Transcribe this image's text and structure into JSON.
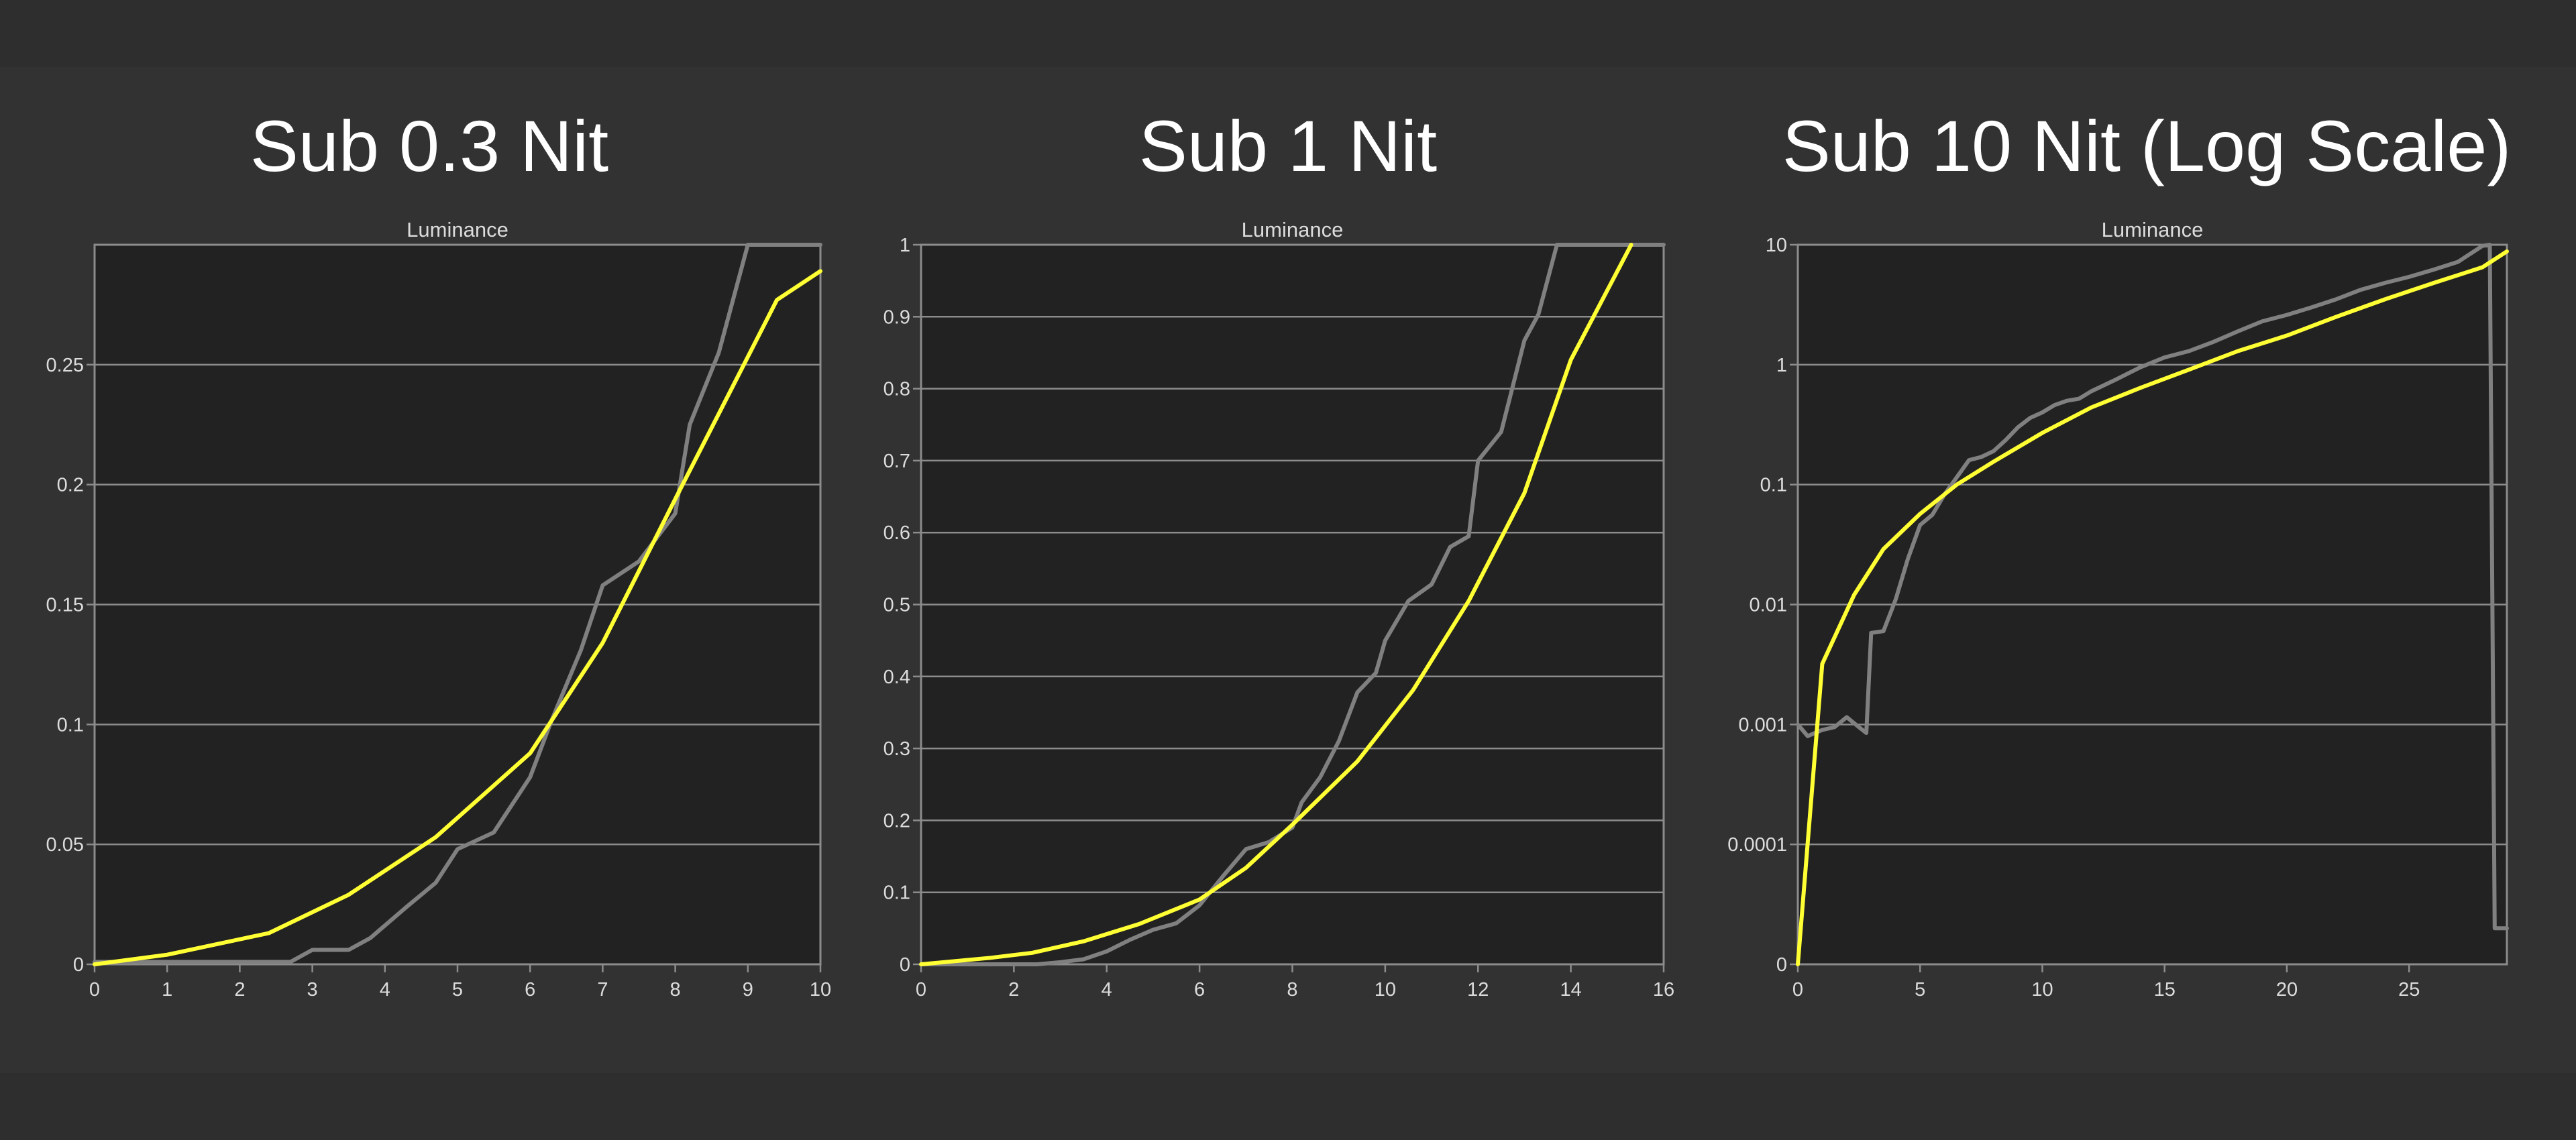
{
  "colors": {
    "background": "#323232",
    "plot_background": "#222222",
    "grid": "#8c8c8c",
    "text": "#dcdcdc",
    "series_reference": "#ffff33",
    "series_measured": "#808080"
  },
  "chart_data": [
    {
      "type": "line",
      "title": "Sub 0.3 Nit",
      "axis_title": "Luminance",
      "xlim": [
        0,
        10
      ],
      "ylim": [
        0,
        0.3
      ],
      "x_ticks": [
        "0",
        "1",
        "2",
        "3",
        "4",
        "5",
        "6",
        "7",
        "8",
        "9",
        "10"
      ],
      "y_ticks": [
        "0",
        "0.05",
        "0.1",
        "0.15",
        "0.2",
        "0.25"
      ],
      "grid": true,
      "series": [
        {
          "color": "#ffff33",
          "x": [
            0,
            1,
            2.4,
            3.5,
            4.7,
            6,
            7,
            8,
            9.4,
            10
          ],
          "y": [
            0,
            0.004,
            0.013,
            0.029,
            0.053,
            0.088,
            0.134,
            0.194,
            0.277,
            0.289
          ]
        },
        {
          "color": "#808080",
          "x": [
            0,
            2.7,
            3,
            3.5,
            3.8,
            4.3,
            4.7,
            5,
            5.5,
            6,
            6.3,
            6.7,
            7,
            7.5,
            8,
            8.2,
            8.6,
            9,
            10
          ],
          "y": [
            0.001,
            0.001,
            0.006,
            0.006,
            0.011,
            0.024,
            0.034,
            0.048,
            0.055,
            0.078,
            0.102,
            0.131,
            0.158,
            0.168,
            0.188,
            0.225,
            0.255,
            0.3,
            0.3
          ]
        }
      ]
    },
    {
      "type": "line",
      "title": "Sub 1 Nit",
      "axis_title": "Luminance",
      "xlim": [
        0,
        16
      ],
      "ylim": [
        0,
        1
      ],
      "x_ticks": [
        "0",
        "2",
        "4",
        "6",
        "8",
        "10",
        "12",
        "14",
        "16"
      ],
      "y_ticks": [
        "0",
        "0.1",
        "0.2",
        "0.3",
        "0.4",
        "0.5",
        "0.6",
        "0.7",
        "0.8",
        "0.9",
        "1"
      ],
      "grid": true,
      "series": [
        {
          "color": "#ffff33",
          "x": [
            0,
            1.5,
            2.4,
            3.5,
            4.7,
            6,
            7,
            8,
            9.4,
            10.6,
            11.8,
            13,
            14,
            15.3
          ],
          "y": [
            0,
            0.009,
            0.016,
            0.032,
            0.056,
            0.09,
            0.134,
            0.194,
            0.282,
            0.381,
            0.505,
            0.655,
            0.84,
            1.0
          ]
        },
        {
          "color": "#808080",
          "x": [
            0,
            2.5,
            3,
            3.5,
            4,
            4.5,
            5,
            5.5,
            6,
            6.5,
            7,
            7.5,
            8,
            8.2,
            8.6,
            9,
            9.4,
            9.8,
            10,
            10.5,
            11,
            11.4,
            11.8,
            12,
            12.5,
            13,
            13.3,
            13.7,
            16
          ],
          "y": [
            0,
            0,
            0.003,
            0.007,
            0.018,
            0.034,
            0.048,
            0.057,
            0.082,
            0.122,
            0.16,
            0.17,
            0.19,
            0.225,
            0.26,
            0.31,
            0.378,
            0.405,
            0.45,
            0.505,
            0.528,
            0.58,
            0.595,
            0.7,
            0.74,
            0.867,
            0.903,
            1.0,
            1.0
          ]
        }
      ]
    },
    {
      "type": "line",
      "title": "Sub 10 Nit (Log Scale)",
      "axis_title": "Luminance",
      "scale": "log",
      "xlim": [
        0,
        29
      ],
      "ylim": [
        0,
        10
      ],
      "x_ticks": [
        "0",
        "5",
        "10",
        "15",
        "20",
        "25"
      ],
      "y_ticks": [
        "0",
        "0.0001",
        "0.001",
        "0.01",
        "0.1",
        "1",
        "10"
      ],
      "grid": true,
      "series": [
        {
          "color": "#ffff33",
          "x": [
            0,
            1,
            2.3,
            3.5,
            5,
            6.5,
            8,
            10,
            12,
            14,
            16,
            18,
            20,
            22,
            24,
            26,
            28,
            29
          ],
          "y": [
            0,
            0.0032,
            0.012,
            0.029,
            0.057,
            0.1,
            0.155,
            0.27,
            0.44,
            0.64,
            0.91,
            1.3,
            1.75,
            2.5,
            3.5,
            4.8,
            6.5,
            8.8
          ]
        },
        {
          "color": "#808080",
          "x": [
            0,
            0.4,
            1,
            1.5,
            2,
            2.5,
            2.8,
            3,
            3.5,
            4,
            4.5,
            5,
            5.5,
            6,
            6.5,
            7,
            7.5,
            8,
            8.5,
            9,
            9.5,
            10,
            10.5,
            11,
            11.5,
            12,
            13,
            14,
            15,
            16,
            17,
            18,
            19,
            20,
            21,
            22,
            23,
            24,
            25,
            26,
            27,
            28,
            28.3,
            28.5,
            29
          ],
          "y": [
            0.001,
            0.0008,
            0.0009,
            0.00095,
            0.00115,
            0.00095,
            0.00085,
            0.0058,
            0.006,
            0.011,
            0.024,
            0.046,
            0.056,
            0.083,
            0.115,
            0.16,
            0.17,
            0.19,
            0.235,
            0.3,
            0.36,
            0.4,
            0.46,
            0.5,
            0.52,
            0.6,
            0.75,
            0.95,
            1.15,
            1.3,
            1.55,
            1.9,
            2.3,
            2.6,
            3.0,
            3.5,
            4.2,
            4.8,
            5.4,
            6.2,
            7.2,
            9.8,
            10,
            2e-05,
            2e-05
          ]
        }
      ]
    }
  ]
}
